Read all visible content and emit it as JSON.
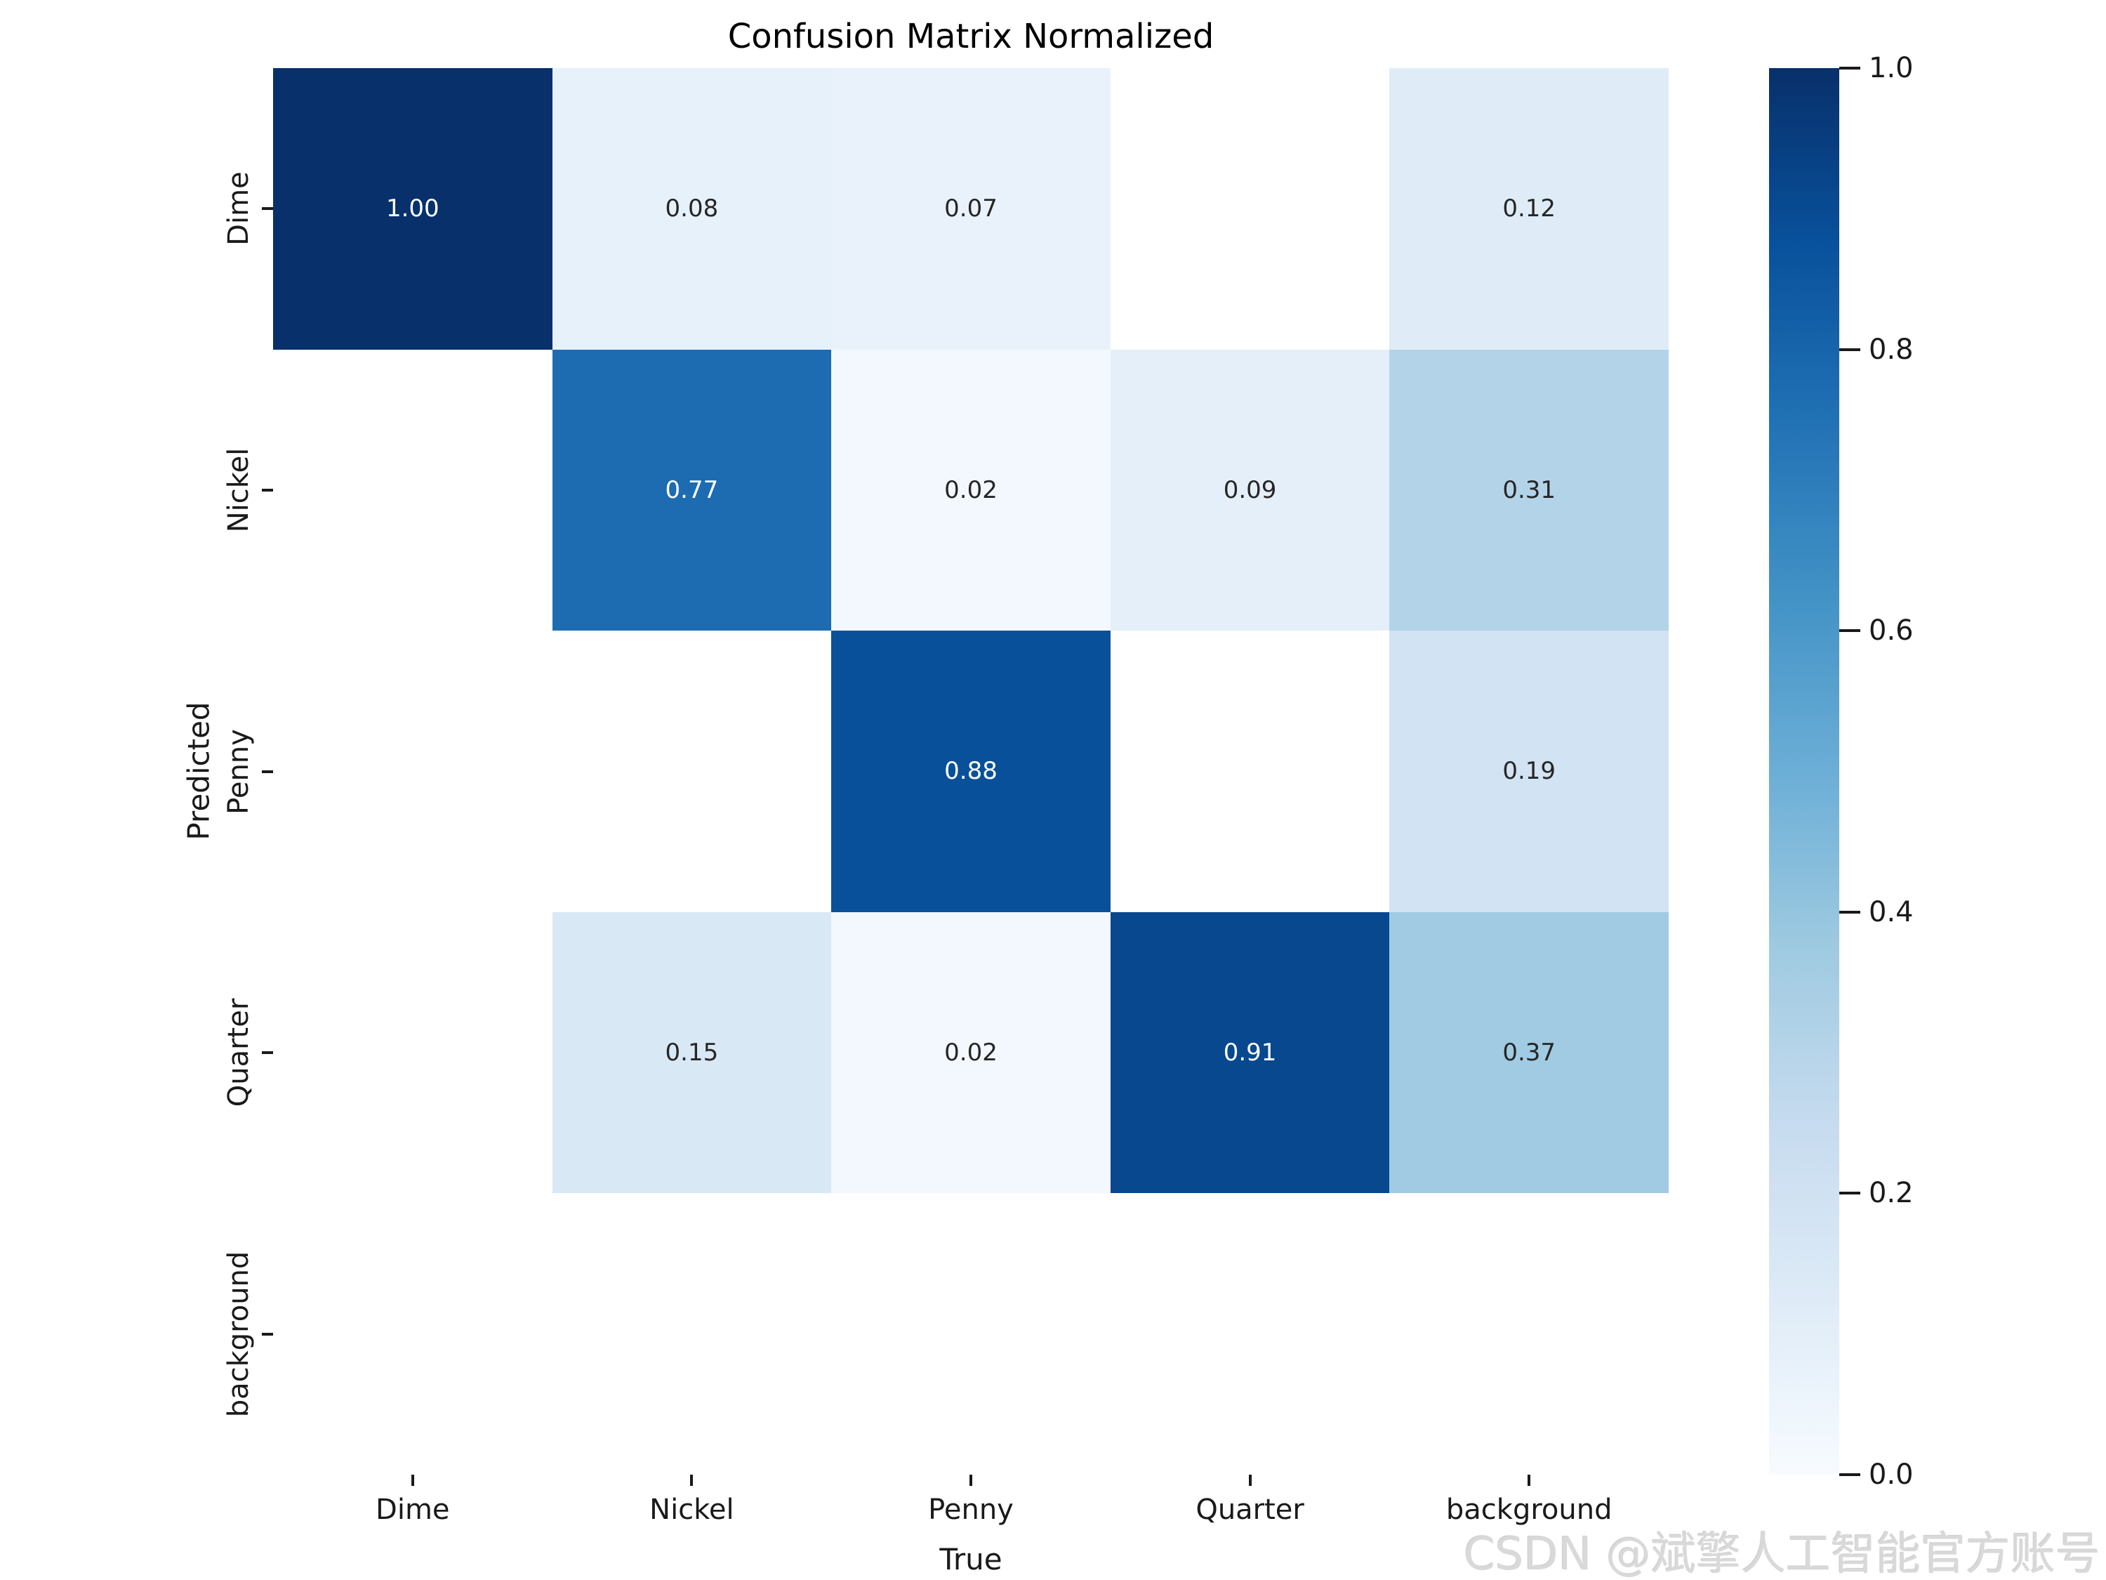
{
  "title": "Confusion Matrix Normalized",
  "watermark": "CSDN @斌擎人工智能官方账号",
  "chart_data": {
    "type": "heatmap",
    "title": "Confusion Matrix Normalized",
    "xlabel": "True",
    "ylabel": "Predicted",
    "x_categories": [
      "Dime",
      "Nickel",
      "Penny",
      "Quarter",
      "background"
    ],
    "y_categories": [
      "Dime",
      "Nickel",
      "Penny",
      "Quarter",
      "background"
    ],
    "vmin": 0.0,
    "vmax": 1.0,
    "cells": [
      [
        1.0,
        0.08,
        0.07,
        null,
        0.12
      ],
      [
        null,
        0.77,
        0.02,
        0.09,
        0.31
      ],
      [
        null,
        null,
        0.88,
        null,
        0.19
      ],
      [
        null,
        0.15,
        0.02,
        0.91,
        0.37
      ],
      [
        null,
        null,
        null,
        null,
        null
      ]
    ],
    "annotation_format": "2-decimals",
    "annotation_color_dark": "#262626",
    "annotation_color_light": "#ffffff",
    "blank_cell_color": "#ffffff",
    "colormap": "Blues",
    "colormap_stops": [
      {
        "pos": 0.0,
        "color": "#f7fbff"
      },
      {
        "pos": 0.125,
        "color": "#deebf7"
      },
      {
        "pos": 0.25,
        "color": "#c6dbef"
      },
      {
        "pos": 0.375,
        "color": "#9ecae1"
      },
      {
        "pos": 0.5,
        "color": "#6baed6"
      },
      {
        "pos": 0.625,
        "color": "#4292c6"
      },
      {
        "pos": 0.75,
        "color": "#2171b5"
      },
      {
        "pos": 0.875,
        "color": "#08519c"
      },
      {
        "pos": 1.0,
        "color": "#08306b"
      }
    ],
    "colorbar": {
      "tick_values": [
        1.0,
        0.8,
        0.6,
        0.4,
        0.2,
        0.0
      ],
      "tick_labels": [
        "1.0",
        "0.8",
        "0.6",
        "0.4",
        "0.2",
        "0.0"
      ]
    },
    "legend_position": "right-colorbar",
    "grid": false
  }
}
